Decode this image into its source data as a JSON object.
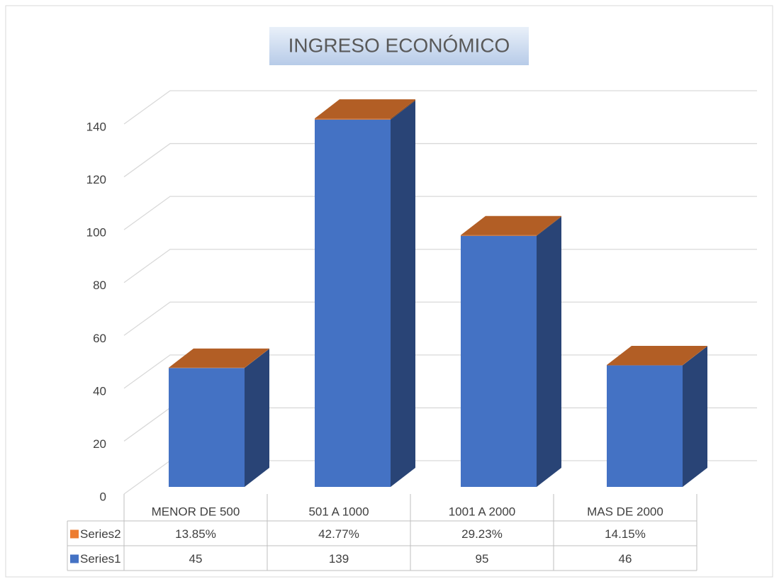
{
  "chart_data": {
    "type": "bar3d",
    "title": "INGRESO ECONÓMICO",
    "categories": [
      "MENOR DE 500",
      "501 A 1000",
      "1001 A 2000",
      "MAS DE 2000"
    ],
    "series": [
      {
        "name": "Series2",
        "color": "#ed7d31",
        "values": [
          0.1385,
          0.4277,
          0.2923,
          0.1415
        ],
        "value_labels": [
          "13.85%",
          "42.77%",
          "29.23%",
          "14.15%"
        ]
      },
      {
        "name": "Series1",
        "color": "#4472c4",
        "values": [
          45,
          139,
          95,
          46
        ]
      }
    ],
    "ylim": [
      0,
      140
    ],
    "yticks": [
      0,
      20,
      40,
      60,
      80,
      100,
      120,
      140
    ],
    "grid": true
  }
}
